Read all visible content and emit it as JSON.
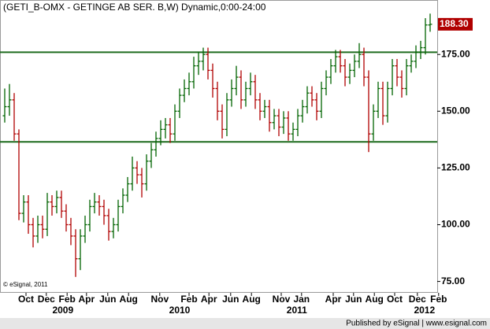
{
  "chart_data": {
    "type": "ohlc",
    "title": "(GETI_B-OMX - GETINGE AB SER. B,W) Dynamic,0:00-24:00",
    "credit": "© eSignal, 2011",
    "footer": "Published by eSignal | www.esignal.com",
    "open": [
      148,
      152,
      155,
      140,
      105,
      110,
      100,
      95,
      100,
      98,
      110,
      108,
      112,
      106,
      100,
      95,
      85,
      95,
      100,
      108,
      110,
      108,
      104,
      97,
      100,
      108,
      113,
      118,
      125,
      122,
      118,
      128,
      133,
      138,
      142,
      144,
      140,
      150,
      157,
      160,
      163,
      170,
      172,
      175,
      168,
      160,
      150,
      142,
      155,
      160,
      165,
      155,
      160,
      163,
      155,
      150,
      152,
      145,
      148,
      143,
      147,
      140,
      142,
      148,
      152,
      158,
      155,
      150,
      160,
      165,
      170,
      174,
      170,
      165,
      168,
      172,
      175,
      165,
      140,
      150,
      160,
      148,
      160,
      170,
      165,
      160,
      170,
      172,
      176,
      178,
      188
    ],
    "high": [
      160,
      162,
      158,
      142,
      113,
      113,
      103,
      104,
      104,
      114,
      113,
      115,
      115,
      109,
      103,
      98,
      98,
      104,
      111,
      114,
      113,
      111,
      107,
      103,
      111,
      116,
      121,
      130,
      128,
      125,
      131,
      136,
      141,
      146,
      147,
      147,
      153,
      160,
      164,
      167,
      174,
      176,
      178,
      178,
      171,
      163,
      153,
      158,
      164,
      170,
      168,
      163,
      167,
      166,
      158,
      155,
      155,
      151,
      151,
      150,
      150,
      145,
      151,
      155,
      161,
      161,
      158,
      163,
      168,
      173,
      177,
      177,
      173,
      171,
      175,
      180,
      178,
      168,
      153,
      163,
      163,
      163,
      173,
      173,
      168,
      173,
      175,
      179,
      181,
      191,
      193
    ],
    "low": [
      145,
      148,
      137,
      102,
      101,
      96,
      90,
      92,
      94,
      95,
      104,
      105,
      103,
      97,
      91,
      77,
      80,
      92,
      97,
      105,
      104,
      100,
      93,
      94,
      97,
      105,
      110,
      115,
      118,
      112,
      115,
      125,
      130,
      135,
      138,
      136,
      137,
      147,
      154,
      157,
      160,
      166,
      168,
      164,
      156,
      146,
      138,
      139,
      152,
      157,
      151,
      152,
      157,
      151,
      146,
      147,
      141,
      142,
      139,
      140,
      137,
      137,
      139,
      145,
      149,
      152,
      146,
      147,
      157,
      162,
      167,
      167,
      161,
      162,
      165,
      169,
      161,
      132,
      137,
      147,
      144,
      145,
      157,
      161,
      156,
      157,
      167,
      169,
      173,
      175,
      185
    ],
    "close": [
      152,
      155,
      140,
      105,
      110,
      100,
      95,
      100,
      98,
      110,
      108,
      112,
      106,
      100,
      95,
      85,
      95,
      100,
      108,
      110,
      108,
      104,
      97,
      100,
      108,
      113,
      118,
      125,
      122,
      118,
      128,
      133,
      138,
      142,
      144,
      140,
      150,
      157,
      160,
      163,
      170,
      172,
      175,
      168,
      160,
      150,
      142,
      155,
      160,
      165,
      155,
      160,
      163,
      155,
      150,
      152,
      145,
      148,
      143,
      147,
      140,
      142,
      148,
      152,
      158,
      155,
      150,
      160,
      165,
      170,
      174,
      170,
      165,
      168,
      172,
      175,
      165,
      140,
      150,
      160,
      148,
      160,
      170,
      165,
      160,
      170,
      172,
      176,
      178,
      188,
      188.3
    ],
    "last_label": "188.30",
    "up_color": "#006400",
    "down_color": "#b00000",
    "hlines": [
      176,
      136.5
    ],
    "hline_color": "#1e6b1e",
    "xlim": [
      -1,
      91.5
    ],
    "ylim": [
      70,
      199
    ],
    "yticks": [
      {
        "value": 75,
        "label": "75.00"
      },
      {
        "value": 100,
        "label": "100.00"
      },
      {
        "value": 125,
        "label": "125.00"
      },
      {
        "value": 150,
        "label": "150.00"
      },
      {
        "value": 175,
        "label": "175.00"
      }
    ],
    "xticks": [
      {
        "value": 4.5,
        "label": "Oct"
      },
      {
        "value": 8.8,
        "label": "Dec"
      },
      {
        "value": 13.2,
        "label": "Feb"
      },
      {
        "value": 17.3,
        "label": "Apr"
      },
      {
        "value": 21.8,
        "label": "Jun"
      },
      {
        "value": 26.2,
        "label": "Aug"
      },
      {
        "value": 32.8,
        "label": "Nov"
      },
      {
        "value": 39,
        "label": "Feb"
      },
      {
        "value": 43.2,
        "label": "Apr"
      },
      {
        "value": 47.8,
        "label": "Jun"
      },
      {
        "value": 52.2,
        "label": "Aug"
      },
      {
        "value": 58.5,
        "label": "Nov"
      },
      {
        "value": 62.8,
        "label": "Jan"
      },
      {
        "value": 69.5,
        "label": "Apr"
      },
      {
        "value": 73.8,
        "label": "Jun"
      },
      {
        "value": 78.2,
        "label": "Aug"
      },
      {
        "value": 82.5,
        "label": "Oct"
      },
      {
        "value": 87.3,
        "label": "Dec"
      },
      {
        "value": 91.8,
        "label": "Feb"
      }
    ],
    "year_ticks": [
      {
        "value": 12.3,
        "label": "2009"
      },
      {
        "value": 37,
        "label": "2010"
      },
      {
        "value": 61.8,
        "label": "2011"
      },
      {
        "value": 88.8,
        "label": "2012"
      }
    ]
  }
}
